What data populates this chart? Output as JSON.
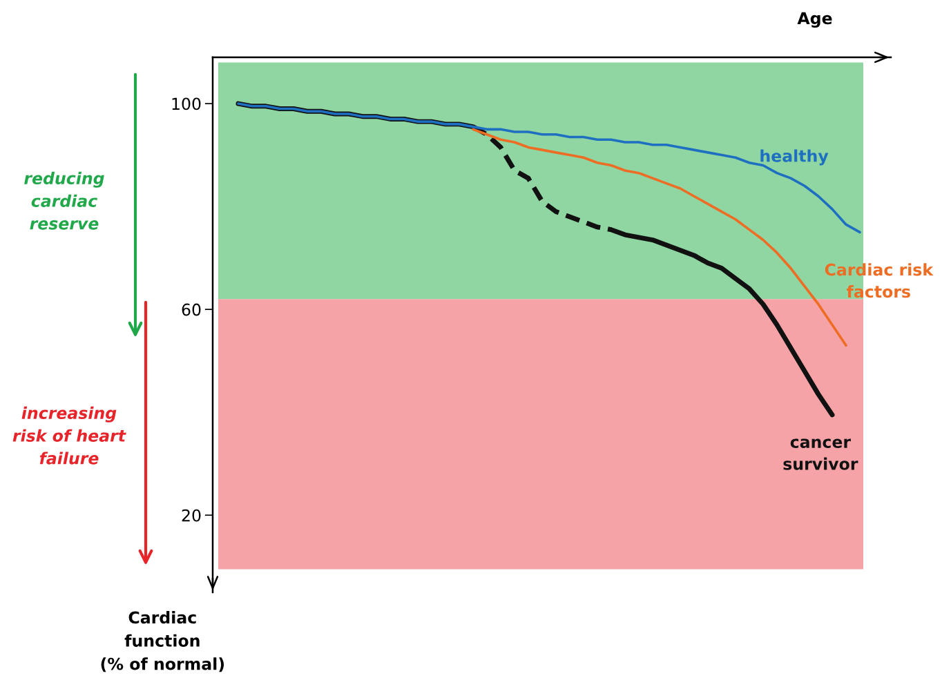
{
  "chart_data": {
    "type": "line",
    "xlabel": "Age",
    "ylabel": "Cardiac\nfunction\n(% of normal)",
    "categories": [
      null,
      null,
      null,
      null,
      null,
      null,
      null,
      null,
      null,
      null,
      null,
      null,
      null,
      null,
      null,
      null,
      null,
      null,
      null,
      null,
      null,
      null,
      null,
      null,
      null,
      null,
      null,
      null,
      null,
      null,
      null,
      null,
      null,
      null,
      null,
      null,
      null,
      null,
      null,
      null,
      null,
      null,
      null,
      null,
      null,
      null
    ],
    "series": [
      {
        "name": "healthy",
        "color": "#1f6fc1",
        "values": [
          100,
          99.5,
          99.5,
          99,
          99,
          98.5,
          98.5,
          98,
          98,
          97.5,
          97.5,
          97,
          97,
          96.5,
          96.5,
          96,
          96,
          95.5,
          95,
          95,
          94.5,
          94.5,
          94,
          94,
          93.5,
          93.5,
          93,
          93,
          92.5,
          92.5,
          92,
          92,
          91.5,
          91,
          90.5,
          90,
          89.5,
          88.5,
          88,
          86.5,
          85.5,
          84,
          82,
          79.5,
          76.5,
          75
        ]
      },
      {
        "name": "Cardiac risk\nfactors",
        "color": "#ed6d25",
        "values": [
          null,
          null,
          null,
          null,
          null,
          null,
          null,
          null,
          null,
          null,
          null,
          null,
          null,
          null,
          null,
          null,
          null,
          95,
          94,
          93,
          92.5,
          91.5,
          91,
          90.5,
          90,
          89.5,
          88.5,
          88,
          87,
          86.5,
          85.5,
          84.5,
          83.5,
          82,
          80.5,
          79,
          77.5,
          75.5,
          73.5,
          71,
          68,
          64.5,
          61,
          57,
          53,
          null
        ]
      },
      {
        "name": "cancer\nsurvivor",
        "color": "#111111",
        "values": [
          100,
          99.5,
          99.5,
          99,
          99,
          98.5,
          98.5,
          98,
          98,
          97.5,
          97.5,
          97,
          97,
          96.5,
          96.5,
          96,
          96,
          95.5,
          null,
          null,
          null,
          null,
          null,
          null,
          null,
          null,
          null,
          75.5,
          74.5,
          74,
          73.5,
          72.5,
          71.5,
          70.5,
          69,
          68,
          66,
          64,
          61,
          57,
          52.5,
          48,
          43.5,
          39.5,
          null,
          null
        ]
      },
      {
        "color": "#111111",
        "line_style": "dashed",
        "values": [
          null,
          null,
          null,
          null,
          null,
          null,
          null,
          null,
          null,
          null,
          null,
          null,
          null,
          null,
          null,
          null,
          null,
          95.5,
          94,
          91.5,
          87,
          85.5,
          81,
          79,
          78,
          77,
          76,
          75.5,
          null,
          null,
          null,
          null,
          null,
          null,
          null,
          null,
          null,
          null,
          null,
          null,
          null,
          null,
          null,
          null,
          null,
          null
        ]
      }
    ],
    "ylim": [
      5,
      109
    ],
    "yticks": [
      100,
      60,
      20
    ],
    "bands": [
      {
        "axis": "y",
        "from": 62,
        "to": 108,
        "color": "#8fd6a3"
      },
      {
        "axis": "y",
        "from": 9.5,
        "to": 62,
        "color": "#f6a3a8"
      }
    ],
    "annotations": [
      "reducing\ncardiac\nreserve",
      "increasing\nrisk of heart\nfailure"
    ],
    "line_style": "solid",
    "grid": false,
    "legend": false
  }
}
